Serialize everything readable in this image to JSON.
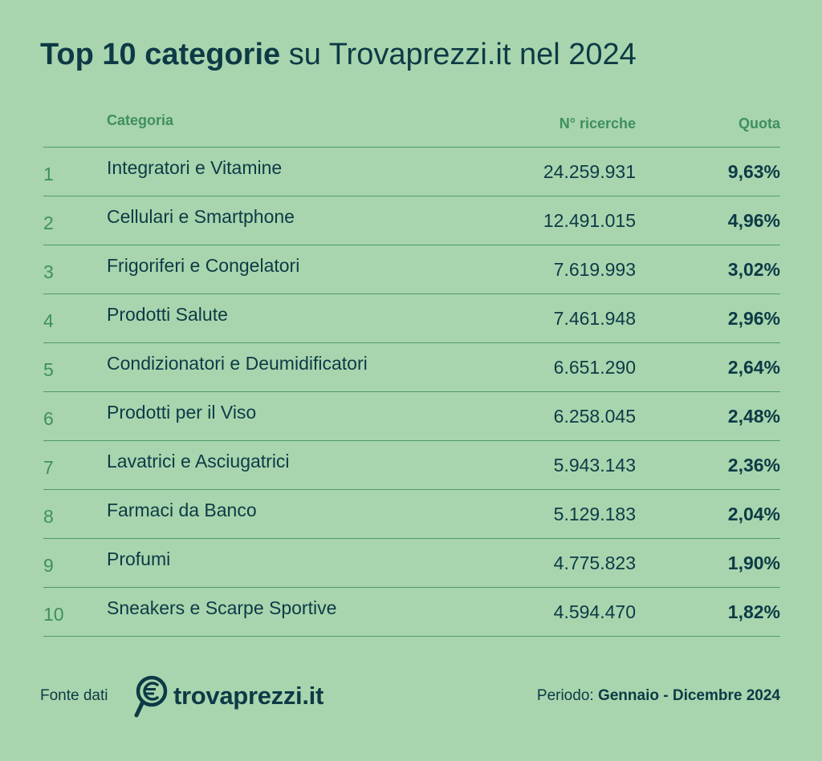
{
  "title": {
    "bold": "Top 10 categorie",
    "regular": "su Trovaprezzi.it nel 2024"
  },
  "table": {
    "headers": {
      "category": "Categoria",
      "searches": "N° ricerche",
      "share": "Quota"
    },
    "rows": [
      {
        "rank": "1",
        "category": "Integratori e Vitamine",
        "searches": "24.259.931",
        "share": "9,63%"
      },
      {
        "rank": "2",
        "category": "Cellulari e Smartphone",
        "searches": "12.491.015",
        "share": "4,96%"
      },
      {
        "rank": "3",
        "category": "Frigoriferi e Congelatori",
        "searches": "7.619.993",
        "share": "3,02%"
      },
      {
        "rank": "4",
        "category": "Prodotti Salute",
        "searches": "7.461.948",
        "share": "2,96%"
      },
      {
        "rank": "5",
        "category": "Condizionatori e Deumidificatori",
        "searches": "6.651.290",
        "share": "2,64%"
      },
      {
        "rank": "6",
        "category": "Prodotti per il Viso",
        "searches": "6.258.045",
        "share": "2,48%"
      },
      {
        "rank": "7",
        "category": "Lavatrici e Asciugatrici",
        "searches": "5.943.143",
        "share": "2,36%"
      },
      {
        "rank": "8",
        "category": "Farmaci da Banco",
        "searches": "5.129.183",
        "share": "2,04%"
      },
      {
        "rank": "9",
        "category": "Profumi",
        "searches": "4.775.823",
        "share": "1,90%"
      },
      {
        "rank": "10",
        "category": "Sneakers e Scarpe Sportive",
        "searches": "4.594.470",
        "share": "1,82%"
      }
    ]
  },
  "footer": {
    "source_label": "Fonte dati",
    "logo_icon": "magnifier-euro-icon",
    "logo_text": "trovaprezzi.it",
    "period_label": "Periodo:",
    "period_value": "Gennaio - Dicembre 2024"
  },
  "colors": {
    "background": "#a8d5ae",
    "text": "#0d3a45",
    "accent": "#3f8f5e",
    "divider": "#4f9a6b"
  }
}
